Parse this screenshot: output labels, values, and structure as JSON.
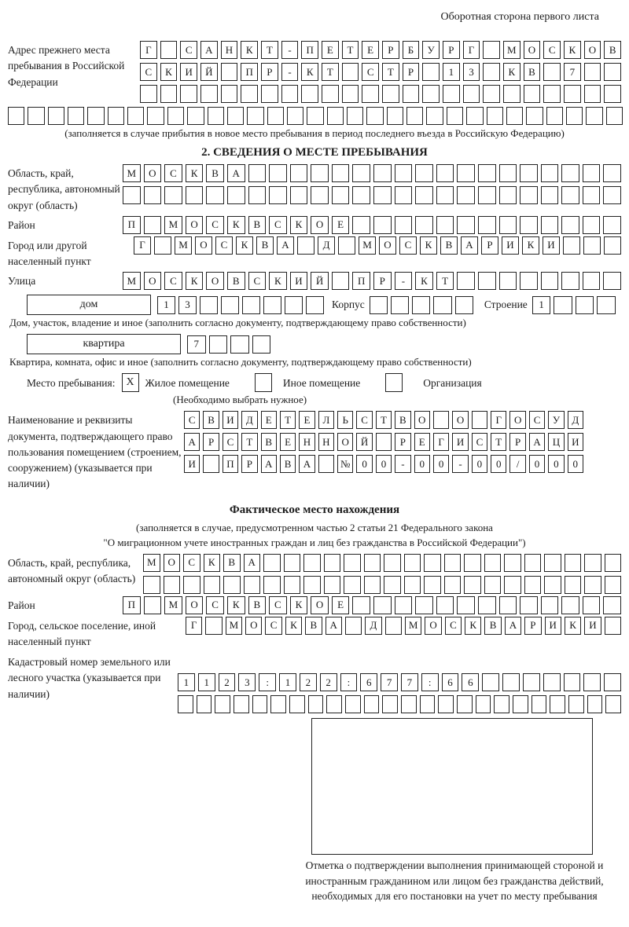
{
  "page_note": "Оборотная сторона первого листа",
  "prev_address": {
    "label": "Адрес прежнего места пребывания в Российской Федерации",
    "row1": "Г САНКТ-ПЕТЕРБУРГ МОСКОВ",
    "row2": "СКИЙ ПР-КТ СТР 13 КВ 7",
    "row3": "",
    "row_full": "",
    "note": "(заполняется в случае прибытия в новое место пребывания в период последнего въезда в Российскую Федерацию)"
  },
  "section2": {
    "title": "2. СВЕДЕНИЯ О МЕСТЕ ПРЕБЫВАНИЯ",
    "region": {
      "label": "Область, край, республика, автономный округ (область)",
      "row1": "МОСКВА",
      "row2": ""
    },
    "district": {
      "label": "Район",
      "row": "П МОСКВСКОЕ"
    },
    "city": {
      "label": "Город или другой населенный пункт",
      "row": "Г МОСКВА Д МОСКВАРИКИ"
    },
    "street": {
      "label": "Улица",
      "row": "МОСКОВСКИЙ ПР-КТ"
    },
    "house": {
      "box_label": "дом",
      "cells": "13",
      "korpus_label": "Корпус",
      "korpus_cells": "",
      "stroenie_label": "Строение",
      "stroenie_cells": "1"
    },
    "house_note": "Дом, участок, владение и иное (заполнить согласно документу, подтверждающему право собственности)",
    "apartment": {
      "box_label": "квартира",
      "cells": "7"
    },
    "apartment_note": "Квартира, комната, офис и иное (заполнить согласно документу, подтверждающему право собственности)",
    "stay_type": {
      "label": "Место пребывания:",
      "opt1": {
        "label": "Жилое помещение",
        "mark": "X"
      },
      "opt2": {
        "label": "Иное помещение",
        "mark": ""
      },
      "opt3": {
        "label": "Организация",
        "mark": ""
      },
      "note": "(Необходимо выбрать нужное)"
    },
    "document": {
      "label": "Наименование и реквизиты документа, подтверждающего право пользования помещением (строением, сооружением) (указывается при наличии)",
      "row1": "СВИДЕТЕЛЬСТВО О ГОСУД",
      "row2": "АРСТВЕННОЙ РЕГИСТРАЦИ",
      "row3": "И ПРАВА №00-00-00/000"
    }
  },
  "actual_location": {
    "title": "Фактическое место нахождения",
    "note_line1": "(заполняется в случае, предусмотренном частью 2 статьи 21 Федерального закона",
    "note_line2": "\"О миграционном учете иностранных граждан и лиц без гражданства в Российской Федерации\")",
    "region": {
      "label": "Область, край, республика, автономный округ (область)",
      "row1": "МОСКВА",
      "row2": ""
    },
    "district": {
      "label": "Район",
      "row": "П МОСКВСКОЕ"
    },
    "city": {
      "label": "Город, сельское поселение, иной населенный пункт",
      "row": "Г МОСКВА Д МОСКВАРИКИ"
    },
    "cadastral": {
      "label": "Кадастровый номер земельного или лесного участка (указывается при наличии)",
      "row1": "1123:122:677:66",
      "row2": ""
    },
    "stamp_caption": "Отметка о подтверждении выполнения принимающей стороной и иностранным гражданином или лицом без гражданства действий, необходимых для его постановки на учет по месту пребывания"
  }
}
